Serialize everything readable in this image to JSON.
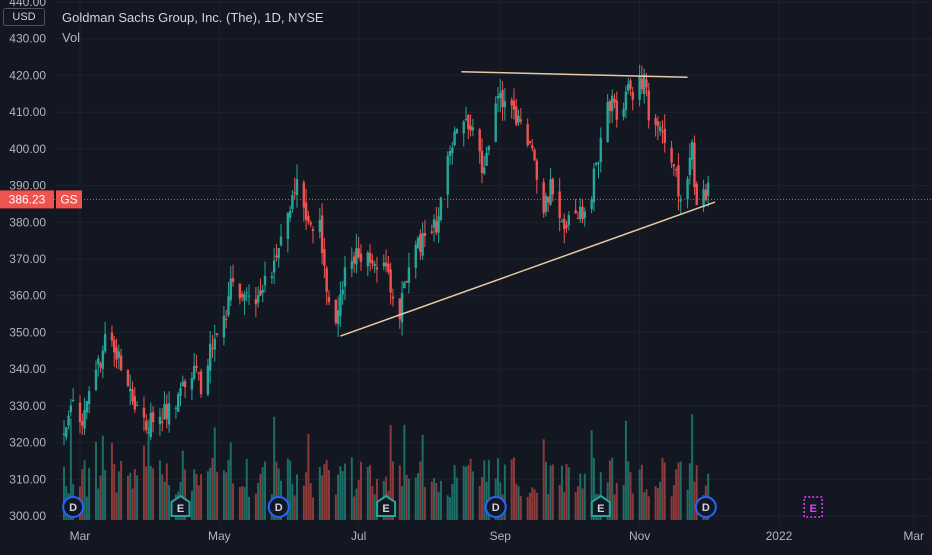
{
  "legend": {
    "title": "Goldman Sachs Group, Inc. (The), 1D, NYSE",
    "volume_label": "Vol"
  },
  "axis": {
    "currency": "USD"
  },
  "last_price": {
    "value": 386.23,
    "label": "386.23",
    "ticker": "GS"
  },
  "colors": {
    "background": "#131722",
    "up": "#26a69a",
    "down": "#ef5350",
    "trendline": "#e8c9a3",
    "price_line": "#ef5350",
    "event_dividend": "#2962ff",
    "event_earnings": "#26a69a",
    "event_future": "#e040fb"
  },
  "chart_data": {
    "type": "candlestick",
    "title": "Goldman Sachs Group, Inc. (The), 1D, NYSE",
    "ylim": [
      300,
      440
    ],
    "y_ticks": [
      300,
      310,
      320,
      330,
      340,
      350,
      360,
      370,
      380,
      390,
      400,
      410,
      420,
      430,
      440
    ],
    "y_tick_labels": [
      "300.00",
      "310.00",
      "320.00",
      "330.00",
      "340.00",
      "350.00",
      "360.00",
      "370.00",
      "380.00",
      "390.00",
      "400.00",
      "410.00",
      "420.00",
      "430.00",
      "440.00"
    ],
    "x_ticks": [
      "Mar",
      "May",
      "Jul",
      "Sep",
      "Nov",
      "2022",
      "Mar"
    ],
    "x_tick_dates": [
      "2021-03-01",
      "2021-05-01",
      "2021-07-01",
      "2021-09-01",
      "2021-11-01",
      "2022-01-01",
      "2022-03-01"
    ],
    "x_range": [
      "2021-02-22",
      "2022-03-02"
    ],
    "grid": true,
    "price_keypoints": [
      [
        "2021-02-22",
        322
      ],
      [
        "2021-02-26",
        330
      ],
      [
        "2021-03-03",
        327
      ],
      [
        "2021-03-08",
        338
      ],
      [
        "2021-03-12",
        348
      ],
      [
        "2021-03-17",
        345
      ],
      [
        "2021-03-23",
        332
      ],
      [
        "2021-03-30",
        325
      ],
      [
        "2021-04-06",
        328
      ],
      [
        "2021-04-13",
        332
      ],
      [
        "2021-04-19",
        340
      ],
      [
        "2021-04-23",
        335
      ],
      [
        "2021-04-27",
        345
      ],
      [
        "2021-05-03",
        352
      ],
      [
        "2021-05-07",
        365
      ],
      [
        "2021-05-11",
        358
      ],
      [
        "2021-05-17",
        360
      ],
      [
        "2021-05-24",
        368
      ],
      [
        "2021-06-01",
        382
      ],
      [
        "2021-06-04",
        390
      ],
      [
        "2021-06-09",
        380
      ],
      [
        "2021-06-14",
        378
      ],
      [
        "2021-06-18",
        358
      ],
      [
        "2021-06-21",
        351
      ],
      [
        "2021-06-25",
        365
      ],
      [
        "2021-07-01",
        372
      ],
      [
        "2021-07-07",
        368
      ],
      [
        "2021-07-12",
        372
      ],
      [
        "2021-07-16",
        360
      ],
      [
        "2021-07-19",
        355
      ],
      [
        "2021-07-23",
        370
      ],
      [
        "2021-07-30",
        375
      ],
      [
        "2021-08-05",
        380
      ],
      [
        "2021-08-10",
        402
      ],
      [
        "2021-08-16",
        410
      ],
      [
        "2021-08-20",
        405
      ],
      [
        "2021-08-24",
        395
      ],
      [
        "2021-08-30",
        412
      ],
      [
        "2021-09-03",
        415
      ],
      [
        "2021-09-09",
        408
      ],
      [
        "2021-09-15",
        400
      ],
      [
        "2021-09-20",
        385
      ],
      [
        "2021-09-24",
        390
      ],
      [
        "2021-09-30",
        378
      ],
      [
        "2021-10-04",
        385
      ],
      [
        "2021-10-08",
        380
      ],
      [
        "2021-10-13",
        395
      ],
      [
        "2021-10-18",
        413
      ],
      [
        "2021-10-22",
        410
      ],
      [
        "2021-10-27",
        415
      ],
      [
        "2021-11-01",
        418
      ],
      [
        "2021-11-03",
        420
      ],
      [
        "2021-11-05",
        410
      ],
      [
        "2021-11-10",
        405
      ],
      [
        "2021-11-15",
        398
      ],
      [
        "2021-11-19",
        385
      ],
      [
        "2021-11-24",
        400
      ],
      [
        "2021-11-26",
        385
      ],
      [
        "2021-12-01",
        388
      ]
    ],
    "trendlines": [
      {
        "name": "resistance",
        "from": [
          "2021-08-15",
          421
        ],
        "to": [
          "2021-11-22",
          419.5
        ]
      },
      {
        "name": "support",
        "from": [
          "2021-06-23",
          349
        ],
        "to": [
          "2021-12-04",
          385.5
        ]
      }
    ],
    "events": [
      {
        "type": "dividend",
        "label": "D",
        "date": "2021-02-26"
      },
      {
        "type": "earnings",
        "label": "E",
        "date": "2021-04-14"
      },
      {
        "type": "dividend",
        "label": "D",
        "date": "2021-05-27"
      },
      {
        "type": "earnings",
        "label": "E",
        "date": "2021-07-13"
      },
      {
        "type": "dividend",
        "label": "D",
        "date": "2021-08-30"
      },
      {
        "type": "earnings",
        "label": "E",
        "date": "2021-10-15"
      },
      {
        "type": "dividend",
        "label": "D",
        "date": "2021-11-30"
      },
      {
        "type": "earnings-future",
        "label": "E",
        "date": "2022-01-16"
      }
    ]
  }
}
